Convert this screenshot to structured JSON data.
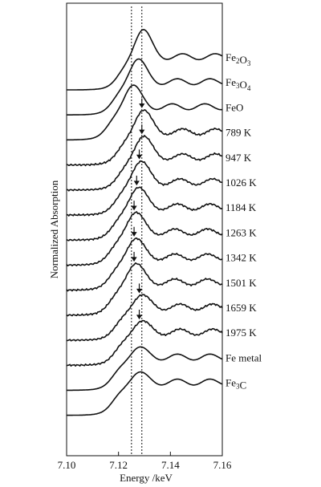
{
  "chart_data": {
    "type": "line",
    "xlabel": "Energy /keV",
    "ylabel": "Normalized Absorption",
    "xlim": [
      7.1,
      7.16
    ],
    "x_ticks": [
      "7.10",
      "7.12",
      "7.14",
      "7.16"
    ],
    "x_tick_values": [
      7.1,
      7.12,
      7.14,
      7.16
    ],
    "grid": false,
    "reference_lines_x": [
      7.125,
      7.129
    ],
    "series": [
      {
        "name": "Fe2O3",
        "label_base": "Fe",
        "label_sub1": "2",
        "label_mid": "O",
        "label_sub2": "3",
        "peak": 7.129,
        "peak_height": 1.25,
        "arrow": false
      },
      {
        "name": "Fe3O4",
        "label_base": "Fe",
        "label_sub1": "3",
        "label_mid": "O",
        "label_sub2": "4",
        "peak": 7.127,
        "peak_height": 1.05,
        "arrow": false
      },
      {
        "name": "FeO",
        "peak": 7.125,
        "peak_height": 1.0,
        "arrow": false
      },
      {
        "name": "789 K",
        "peak": 7.129,
        "peak_height": 1.0,
        "arrow": true
      },
      {
        "name": "947 K",
        "peak": 7.129,
        "peak_height": 0.95,
        "arrow": true
      },
      {
        "name": "1026 K",
        "peak": 7.128,
        "peak_height": 0.95,
        "arrow": true
      },
      {
        "name": "1184 K",
        "peak": 7.127,
        "peak_height": 0.9,
        "arrow": true
      },
      {
        "name": "1263 K",
        "peak": 7.126,
        "peak_height": 0.9,
        "arrow": true
      },
      {
        "name": "1342 K",
        "peak": 7.126,
        "peak_height": 0.85,
        "arrow": true
      },
      {
        "name": "1501 K",
        "peak": 7.126,
        "peak_height": 0.85,
        "arrow": true
      },
      {
        "name": "1659 K",
        "peak": 7.128,
        "peak_height": 0.55,
        "arrow": true
      },
      {
        "name": "1975 K",
        "peak": 7.128,
        "peak_height": 0.5,
        "arrow": true
      },
      {
        "name": "Fe metal",
        "peak": 7.127,
        "peak_height": 0.45,
        "arrow": false
      },
      {
        "name": "Fe3C",
        "label_base": "Fe",
        "label_sub1": "3",
        "label_mid": "C",
        "label_sub2": "",
        "peak": 7.127,
        "peak_height": 0.45,
        "arrow": false
      }
    ]
  }
}
